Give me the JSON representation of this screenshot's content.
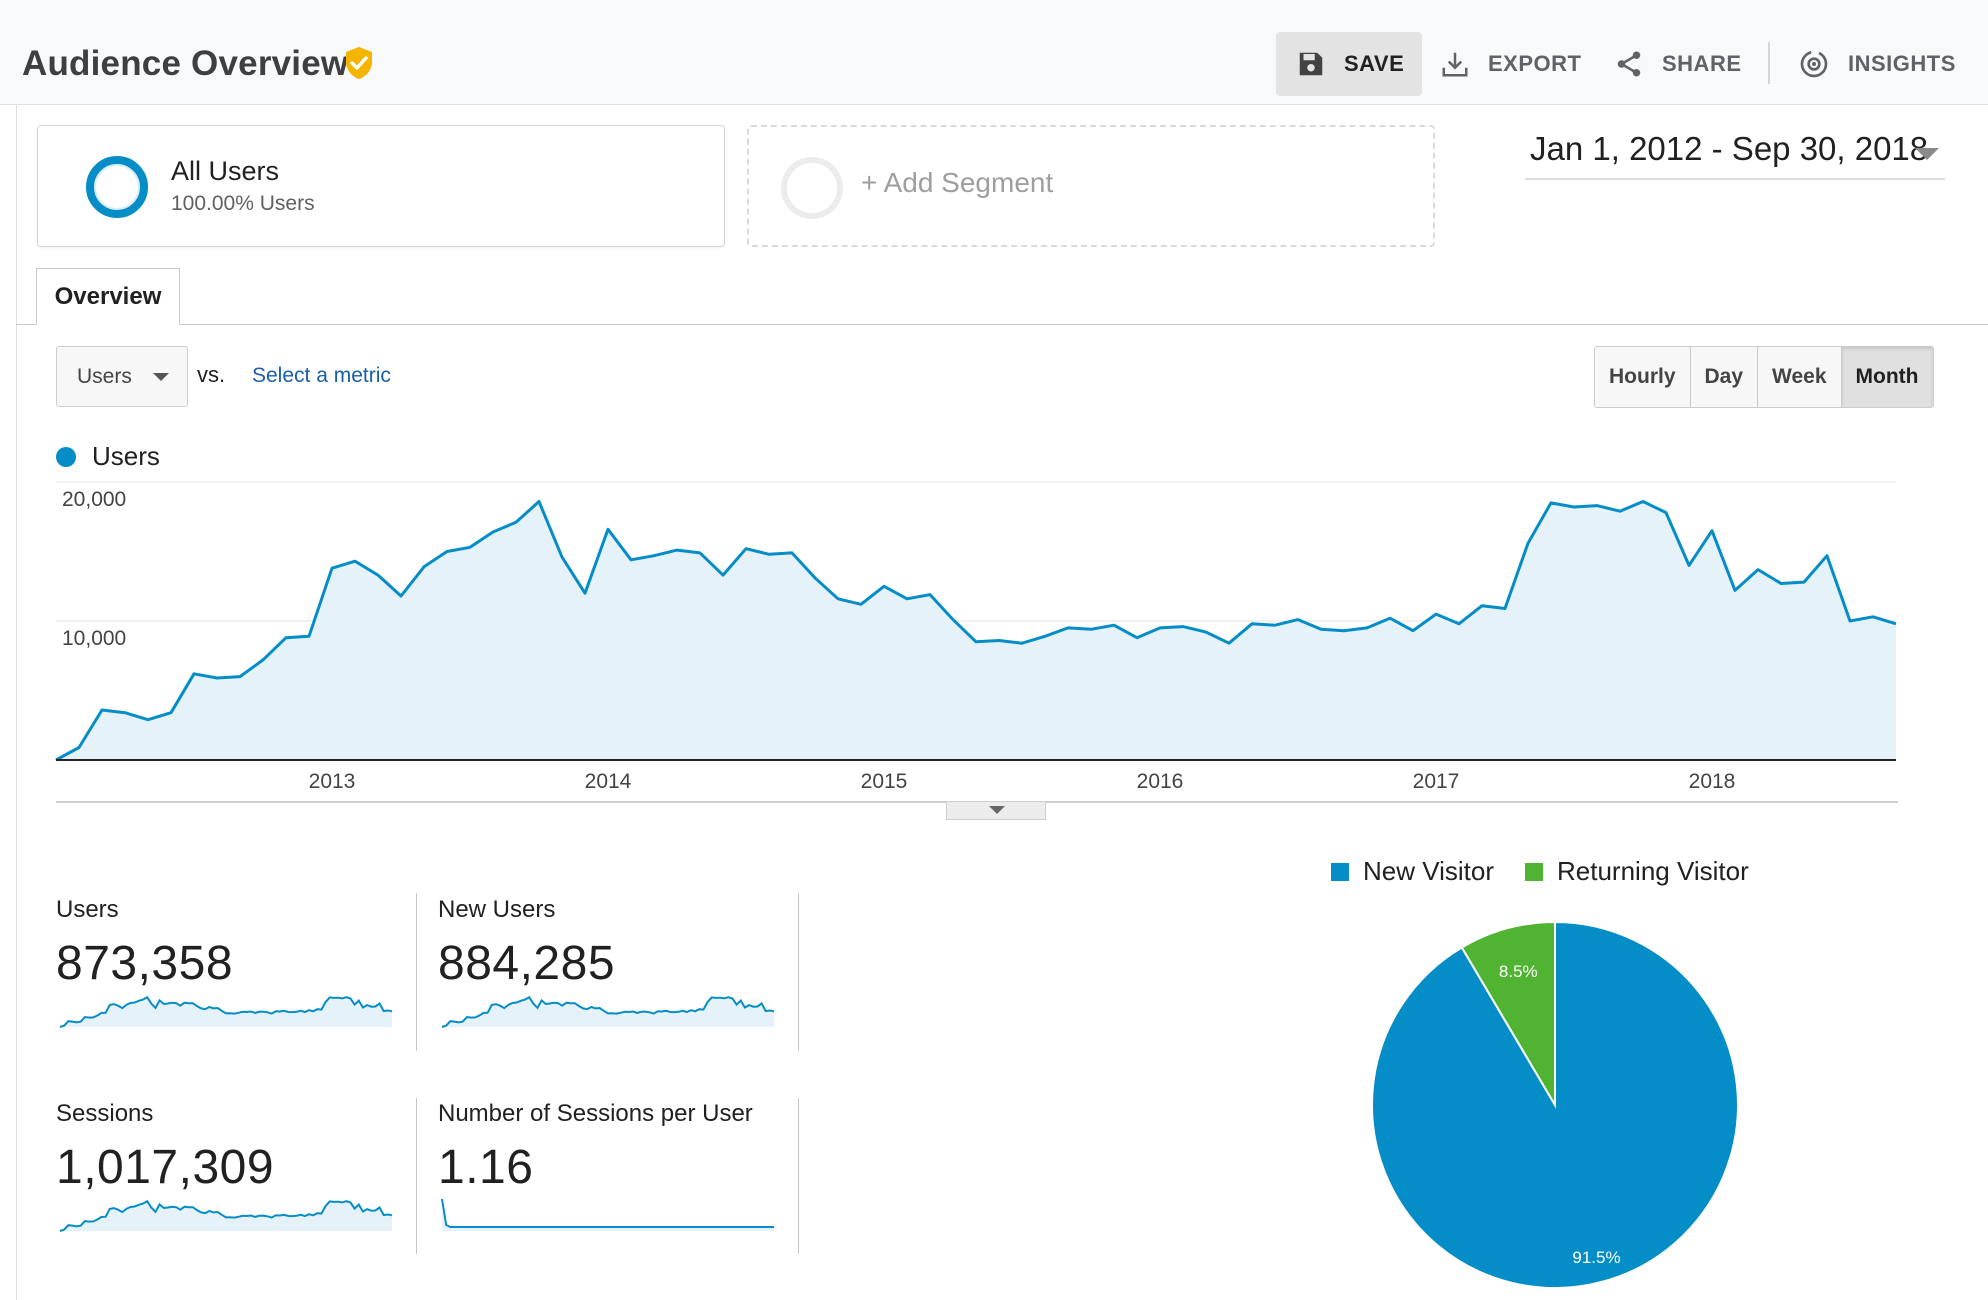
{
  "header": {
    "title": "Audience Overview",
    "save_label": "SAVE",
    "export_label": "EXPORT",
    "share_label": "SHARE",
    "insights_label": "INSIGHTS"
  },
  "segments": {
    "all_users_title": "All Users",
    "all_users_sub": "100.00% Users",
    "add_segment_label": "+ Add Segment"
  },
  "date_range": "Jan 1, 2012 - Sep 30, 2018",
  "tabs": [
    {
      "label": "Overview"
    }
  ],
  "metric_row": {
    "selected_metric": "Users",
    "vs_label": "vs.",
    "select_metric_link": "Select a metric",
    "granularity": [
      {
        "label": "Hourly",
        "active": false
      },
      {
        "label": "Day",
        "active": false
      },
      {
        "label": "Week",
        "active": false
      },
      {
        "label": "Month",
        "active": true
      }
    ]
  },
  "colors": {
    "accent": "#058dc7",
    "area_fill": "#e6f2fa",
    "returning": "#50b432"
  },
  "icons": [
    "verified-shield-icon",
    "save-icon",
    "export-icon",
    "share-icon",
    "insights-icon"
  ],
  "stats": [
    {
      "label": "Users",
      "value": "873,358"
    },
    {
      "label": "New Users",
      "value": "884,285"
    },
    {
      "label": "Sessions",
      "value": "1,017,309"
    },
    {
      "label": "Number of Sessions per User",
      "value": "1.16"
    }
  ],
  "chart_data": [
    {
      "type": "area",
      "title": "",
      "series": [
        {
          "name": "Users",
          "values": [
            0,
            900,
            3600,
            3400,
            2900,
            3400,
            6200,
            5900,
            6000,
            7200,
            8800,
            8900,
            13800,
            14300,
            13300,
            11800,
            13900,
            15000,
            15300,
            16400,
            17100,
            18600,
            14600,
            12000,
            16600,
            14400,
            14700,
            15100,
            14900,
            13300,
            15200,
            14800,
            14900,
            13100,
            11600,
            11200,
            12500,
            11600,
            11900,
            10100,
            8500,
            8600,
            8400,
            8900,
            9500,
            9400,
            9700,
            8800,
            9500,
            9600,
            9200,
            8400,
            9800,
            9700,
            10100,
            9400,
            9300,
            9500,
            10200,
            9300,
            10500,
            9800,
            11100,
            10900,
            15600,
            18500,
            18200,
            18300,
            17900,
            18600,
            17800,
            14000,
            16500,
            12200,
            13700,
            12700,
            12800,
            14700,
            10000,
            10300,
            9800
          ]
        }
      ],
      "x_start": "2012-01",
      "x_unit": "month",
      "x_ticks": [
        "2013",
        "2014",
        "2015",
        "2016",
        "2017",
        "2018"
      ],
      "y_ticks": [
        "10,000",
        "20,000"
      ],
      "ylim": [
        0,
        20000
      ],
      "grid": true,
      "legend": "top-left"
    },
    {
      "type": "pie",
      "labels": [
        "New Visitor",
        "Returning Visitor"
      ],
      "values": [
        91.5,
        8.5
      ],
      "value_labels": [
        "91.5%",
        "8.5%"
      ],
      "colors": [
        "#058dc7",
        "#50b432"
      ],
      "legend": "top"
    }
  ]
}
